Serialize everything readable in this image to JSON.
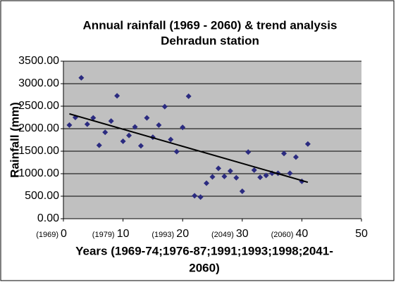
{
  "chart_data": {
    "type": "scatter",
    "title": [
      "Annual rainfall (1969 - 2060) & trend analysis",
      "Dehradun station"
    ],
    "ylabel": "Rainfall (mm)",
    "xlabel": [
      "Years (1969-74;1976-87;1991;1993;1998;2041-",
      "2060)"
    ],
    "annotations": [
      "(1969)",
      "(1979)",
      "(1993)",
      "(2049)",
      "(2060)"
    ],
    "xlim": [
      0,
      50
    ],
    "xticks": [
      0,
      10,
      20,
      30,
      40,
      50
    ],
    "ylim": [
      0,
      3500
    ],
    "yticks": [
      {
        "value": 0,
        "label": "0.00"
      },
      {
        "value": 500,
        "label": "500.00"
      },
      {
        "value": 1000,
        "label": "1000.00"
      },
      {
        "value": 1500,
        "label": "1500.00"
      },
      {
        "value": 2000,
        "label": "2000.00"
      },
      {
        "value": 2500,
        "label": "2500.00"
      },
      {
        "value": 3000,
        "label": "3000.00"
      },
      {
        "value": 3500,
        "label": "3500.00"
      }
    ],
    "grid": true,
    "color": "#2b2b80",
    "x": [
      1,
      2,
      3,
      4,
      5,
      6,
      7,
      8,
      9,
      10,
      11,
      12,
      13,
      14,
      15,
      16,
      17,
      18,
      19,
      20,
      21,
      22,
      23,
      24,
      25,
      26,
      27,
      28,
      29,
      30,
      31,
      32,
      33,
      34,
      35,
      36,
      37,
      38,
      39,
      40,
      41
    ],
    "values": [
      2080,
      2250,
      3130,
      2100,
      2240,
      1630,
      1920,
      2170,
      2730,
      1720,
      1850,
      2040,
      1620,
      2240,
      1810,
      2080,
      2490,
      1760,
      1490,
      2030,
      2720,
      510,
      480,
      790,
      930,
      1120,
      940,
      1060,
      910,
      610,
      1480,
      1080,
      920,
      960,
      1010,
      1010,
      1450,
      1010,
      1370,
      830,
      1660
    ],
    "trend": {
      "x": [
        1,
        41
      ],
      "values": [
        2330,
        810
      ],
      "color": "#000000"
    }
  }
}
